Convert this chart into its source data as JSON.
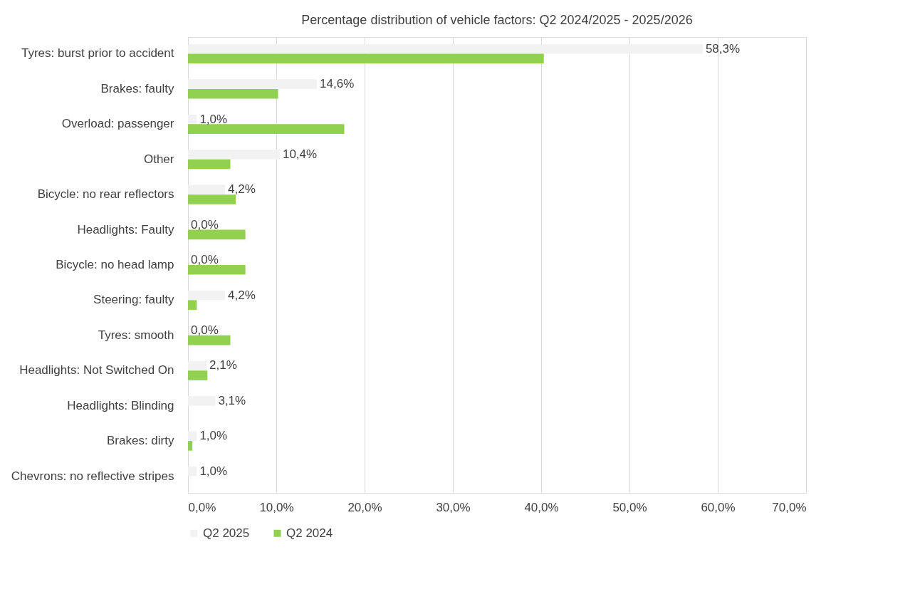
{
  "chart_data": {
    "type": "bar",
    "orientation": "horizontal",
    "title": "Percentage distribution of vehicle factors:  Q2 2024/2025 - 2025/2026",
    "categories": [
      "Tyres: burst prior to accident",
      "Brakes: faulty",
      "Overload: passenger",
      "Other",
      "Bicycle: no rear reflectors",
      "Headlights: Faulty",
      "Bicycle:  no head lamp",
      "Steering: faulty",
      "Tyres: smooth",
      "Headlights: Not Switched On",
      "Headlights: Blinding",
      "Brakes: dirty",
      "Chevrons: no reflective stripes"
    ],
    "series": [
      {
        "name": "Q2 2025",
        "color": "#f2f2f2",
        "values": [
          58.3,
          14.6,
          1.0,
          10.4,
          4.2,
          0.0,
          0.0,
          4.2,
          0.0,
          2.1,
          3.1,
          1.0,
          1.0
        ],
        "value_labels": [
          "58,3%",
          "14,6%",
          "1,0%",
          "10,4%",
          "4,2%",
          "0,0%",
          "0,0%",
          "4,2%",
          "0,0%",
          "2,1%",
          "3,1%",
          "1,0%",
          "1,0%"
        ]
      },
      {
        "name": "Q2 2024",
        "color": "#92d050",
        "values": [
          40.3,
          10.2,
          17.7,
          4.8,
          5.4,
          6.5,
          6.5,
          1.0,
          4.8,
          2.2,
          null,
          0.5,
          null
        ]
      }
    ],
    "xlim": [
      0,
      70
    ],
    "xticks": [
      {
        "value": 0,
        "label": "0,0%"
      },
      {
        "value": 10,
        "label": "10,0%"
      },
      {
        "value": 20,
        "label": "20,0%"
      },
      {
        "value": 30,
        "label": "30,0%"
      },
      {
        "value": 40,
        "label": "40,0%"
      },
      {
        "value": 50,
        "label": "50,0%"
      },
      {
        "value": 60,
        "label": "60,0%"
      },
      {
        "value": 70,
        "label": "70,0%"
      }
    ],
    "grid": "x",
    "legend": "bottom"
  }
}
